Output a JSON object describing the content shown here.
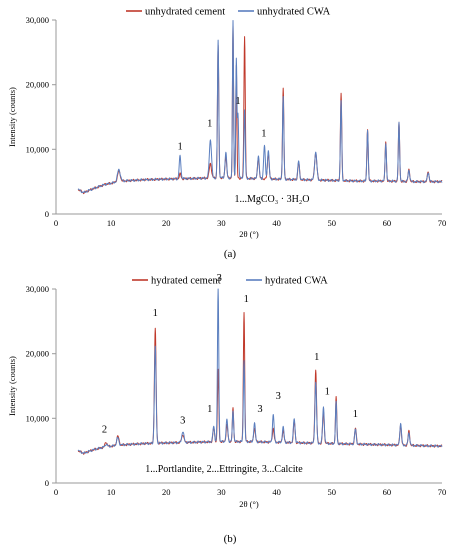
{
  "chart_data": [
    {
      "type": "line",
      "panel_label": "(a)",
      "xlabel": "2θ (°)",
      "ylabel": "Intensity (counts)",
      "xlim": [
        0,
        70
      ],
      "ylim": [
        0,
        30000
      ],
      "x_ticks": [
        "0",
        "10",
        "20",
        "30",
        "40",
        "50",
        "60",
        "70"
      ],
      "y_ticks": [
        "0",
        "10,000",
        "20,000",
        "30,000"
      ],
      "legend_position": "top-center",
      "annotation_text": "1...MgCO₃ · 3H₂O",
      "baseline": [
        [
          4,
          3800
        ],
        [
          5,
          3300
        ],
        [
          7,
          4000
        ],
        [
          9,
          4600
        ],
        [
          12,
          5100
        ],
        [
          16,
          5300
        ],
        [
          20,
          5400
        ],
        [
          25,
          5500
        ],
        [
          30,
          5600
        ],
        [
          35,
          5500
        ],
        [
          40,
          5400
        ],
        [
          45,
          5300
        ],
        [
          50,
          5200
        ],
        [
          55,
          5100
        ],
        [
          60,
          5100
        ],
        [
          65,
          5000
        ],
        [
          70,
          5000
        ]
      ],
      "series": [
        {
          "name": "unhydrated cement",
          "color": "#c0392b",
          "peaks": [
            [
              11.4,
              6600,
              0.25
            ],
            [
              22.5,
              6200,
              0.15
            ],
            [
              28.0,
              7800,
              0.2
            ],
            [
              29.4,
              26000,
              0.12
            ],
            [
              30.8,
              9000,
              0.15
            ],
            [
              32.1,
              29000,
              0.1
            ],
            [
              32.7,
              23000,
              0.1
            ],
            [
              34.2,
              27500,
              0.12
            ],
            [
              36.7,
              8800,
              0.15
            ],
            [
              38.5,
              9500,
              0.15
            ],
            [
              41.2,
              19500,
              0.12
            ],
            [
              44.0,
              8000,
              0.15
            ],
            [
              47.1,
              9500,
              0.2
            ],
            [
              51.7,
              18700,
              0.12
            ],
            [
              56.5,
              13200,
              0.12
            ],
            [
              59.8,
              11200,
              0.12
            ],
            [
              62.2,
              14000,
              0.12
            ],
            [
              64.0,
              6800,
              0.15
            ],
            [
              67.5,
              6500,
              0.15
            ]
          ]
        },
        {
          "name": "unhydrated CWA",
          "color": "#5b7fbf",
          "peaks": [
            [
              11.4,
              6900,
              0.25
            ],
            [
              22.5,
              9000,
              0.15
            ],
            [
              28.0,
              11500,
              0.2
            ],
            [
              29.4,
              26800,
              0.12
            ],
            [
              30.8,
              9500,
              0.15
            ],
            [
              32.1,
              30000,
              0.1
            ],
            [
              32.7,
              23500,
              0.1
            ],
            [
              33.0,
              15500,
              0.12
            ],
            [
              34.2,
              16000,
              0.12
            ],
            [
              36.7,
              9000,
              0.15
            ],
            [
              37.8,
              10500,
              0.15
            ],
            [
              38.5,
              9800,
              0.15
            ],
            [
              41.2,
              18000,
              0.12
            ],
            [
              44.0,
              8200,
              0.15
            ],
            [
              47.1,
              9500,
              0.2
            ],
            [
              51.7,
              17500,
              0.12
            ],
            [
              56.5,
              13000,
              0.12
            ],
            [
              59.8,
              11000,
              0.12
            ],
            [
              62.2,
              14200,
              0.12
            ],
            [
              64.0,
              6800,
              0.15
            ],
            [
              67.5,
              6500,
              0.15
            ]
          ]
        }
      ],
      "peak_labels": [
        {
          "text": "1",
          "x": 22.5,
          "y": 10000
        },
        {
          "text": "1",
          "x": 27.9,
          "y": 13500
        },
        {
          "text": "1",
          "x": 33.0,
          "y": 17000
        },
        {
          "text": "1",
          "x": 37.7,
          "y": 12000
        }
      ]
    },
    {
      "type": "line",
      "panel_label": "(b)",
      "xlabel": "2θ (°)",
      "ylabel": "Intensity (counts)",
      "xlim": [
        0,
        70
      ],
      "ylim": [
        0,
        30000
      ],
      "x_ticks": [
        "0",
        "10",
        "20",
        "30",
        "40",
        "50",
        "60",
        "70"
      ],
      "y_ticks": [
        "0",
        "10,000",
        "20,000",
        "30,000"
      ],
      "legend_position": "top-center",
      "annotation_text": "1...Portlandite,  2...Ettringite,  3...Calcite",
      "baseline": [
        [
          4,
          5000
        ],
        [
          5,
          4600
        ],
        [
          7,
          5200
        ],
        [
          9,
          5600
        ],
        [
          12,
          5900
        ],
        [
          16,
          6100
        ],
        [
          20,
          6200
        ],
        [
          25,
          6300
        ],
        [
          30,
          6400
        ],
        [
          35,
          6400
        ],
        [
          40,
          6300
        ],
        [
          45,
          6200
        ],
        [
          50,
          6100
        ],
        [
          55,
          6000
        ],
        [
          60,
          5900
        ],
        [
          65,
          5800
        ],
        [
          70,
          5700
        ]
      ],
      "series": [
        {
          "name": "hydrated cement",
          "color": "#c0392b",
          "peaks": [
            [
              9.1,
              6300,
              0.2
            ],
            [
              11.2,
              7300,
              0.2
            ],
            [
              18.0,
              24000,
              0.15
            ],
            [
              23.0,
              7500,
              0.2
            ],
            [
              28.6,
              8500,
              0.15
            ],
            [
              29.4,
              17500,
              0.12
            ],
            [
              31.0,
              9000,
              0.15
            ],
            [
              32.1,
              11500,
              0.12
            ],
            [
              34.1,
              26500,
              0.12
            ],
            [
              36.0,
              8600,
              0.15
            ],
            [
              39.4,
              8500,
              0.15
            ],
            [
              41.2,
              8200,
              0.15
            ],
            [
              43.2,
              9500,
              0.15
            ],
            [
              47.1,
              17500,
              0.15
            ],
            [
              48.5,
              11000,
              0.15
            ],
            [
              50.8,
              13300,
              0.12
            ],
            [
              54.3,
              8500,
              0.15
            ],
            [
              62.5,
              9000,
              0.15
            ],
            [
              64.0,
              8000,
              0.15
            ]
          ]
        },
        {
          "name": "hydrated CWA",
          "color": "#5b7fbf",
          "peaks": [
            [
              9.1,
              6000,
              0.2
            ],
            [
              11.2,
              7000,
              0.2
            ],
            [
              18.0,
              21000,
              0.15
            ],
            [
              23.0,
              7900,
              0.2
            ],
            [
              28.6,
              8800,
              0.15
            ],
            [
              29.4,
              30000,
              0.12
            ],
            [
              31.0,
              9800,
              0.15
            ],
            [
              32.1,
              11200,
              0.12
            ],
            [
              34.1,
              19000,
              0.12
            ],
            [
              36.0,
              9200,
              0.15
            ],
            [
              39.4,
              10500,
              0.15
            ],
            [
              41.2,
              8600,
              0.15
            ],
            [
              43.2,
              10000,
              0.15
            ],
            [
              47.1,
              15500,
              0.15
            ],
            [
              48.5,
              11800,
              0.15
            ],
            [
              50.8,
              12500,
              0.12
            ],
            [
              54.3,
              8300,
              0.15
            ],
            [
              62.5,
              9200,
              0.15
            ],
            [
              64.0,
              7800,
              0.15
            ]
          ]
        }
      ],
      "peak_labels": [
        {
          "text": "2",
          "x": 8.8,
          "y": 7800
        },
        {
          "text": "1",
          "x": 18.0,
          "y": 25800
        },
        {
          "text": "3",
          "x": 23.0,
          "y": 9200
        },
        {
          "text": "1",
          "x": 27.9,
          "y": 11000
        },
        {
          "text": "3",
          "x": 29.6,
          "y": 31200
        },
        {
          "text": "1",
          "x": 34.5,
          "y": 28000
        },
        {
          "text": "3",
          "x": 37.0,
          "y": 11000
        },
        {
          "text": "3",
          "x": 40.3,
          "y": 13000
        },
        {
          "text": "1",
          "x": 47.3,
          "y": 19000
        },
        {
          "text": "1",
          "x": 49.2,
          "y": 13700
        },
        {
          "text": "1",
          "x": 54.3,
          "y": 10200
        }
      ]
    }
  ]
}
